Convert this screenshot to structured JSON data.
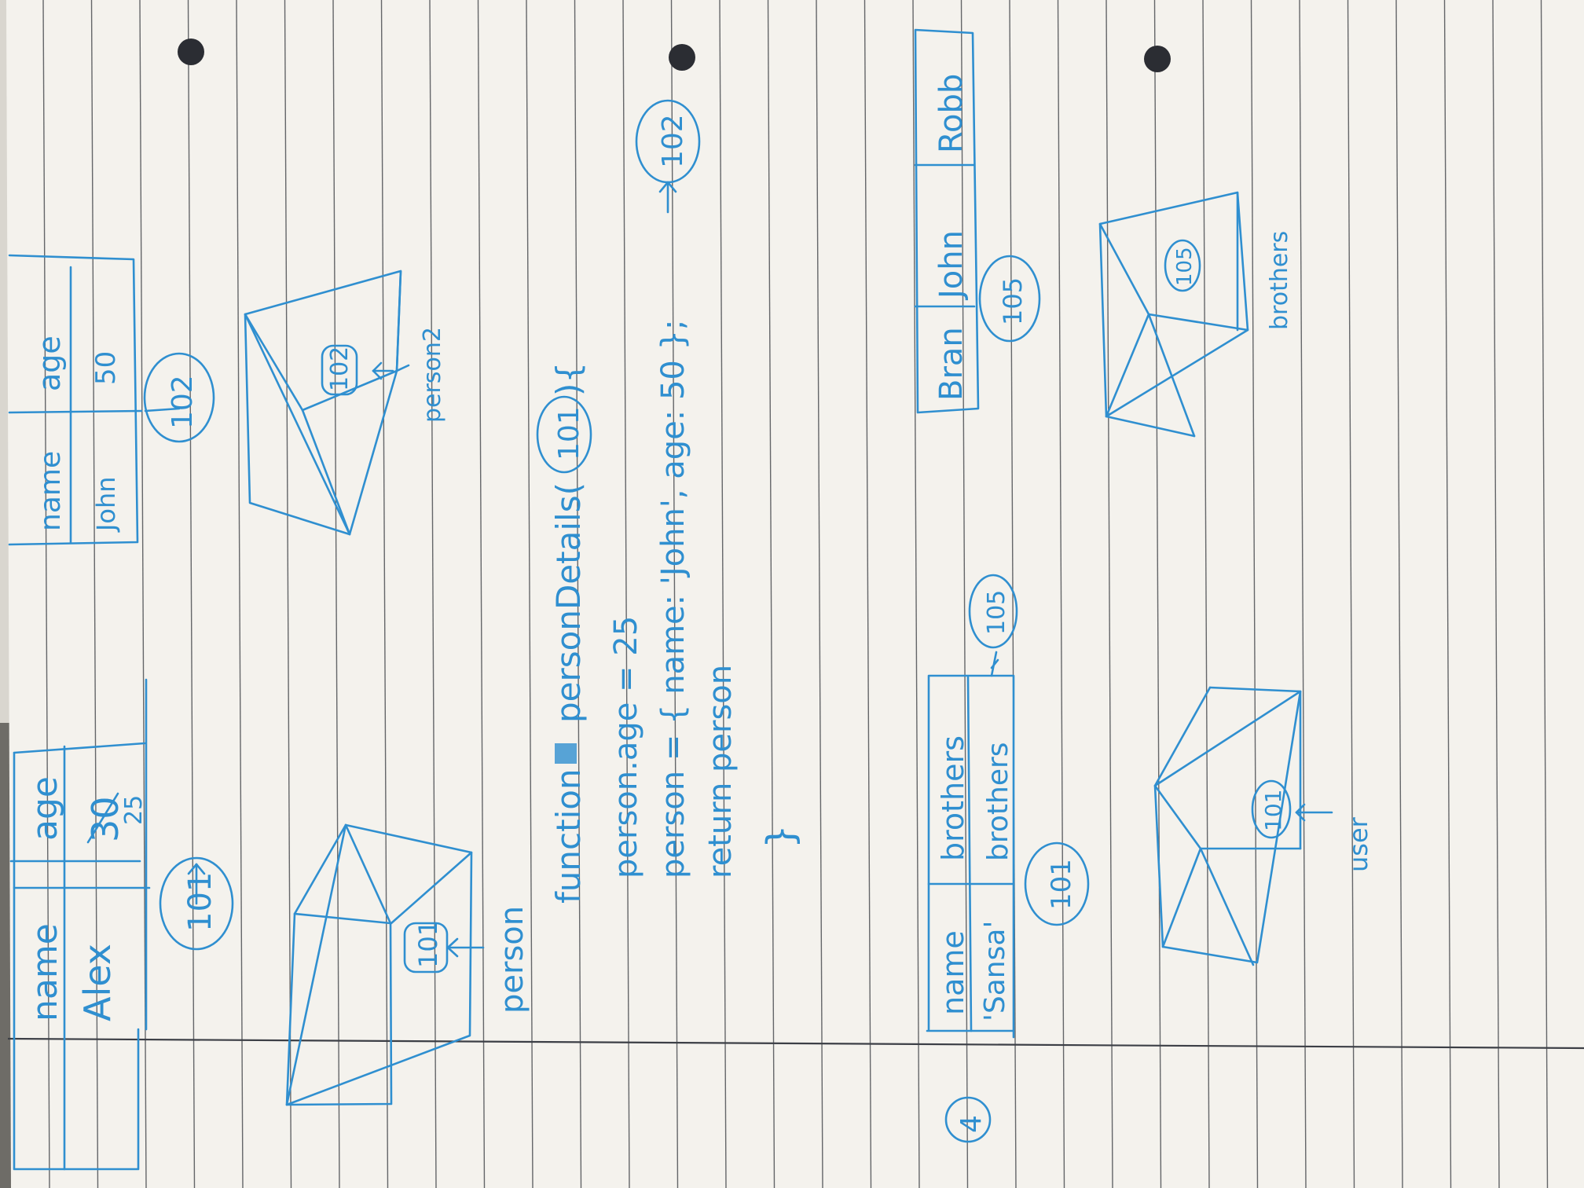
{
  "colors": {
    "ink": "#2f8fd0",
    "paper": "#f4f2ed",
    "rule": "#35383d",
    "margin": "#3c3f46",
    "hole": "#2b2d33"
  },
  "diagram_1": {
    "table": {
      "headers": [
        "name",
        "age"
      ],
      "values": [
        "Alex",
        "30"
      ],
      "age_correction": "25"
    },
    "address": "101",
    "box_address": "101",
    "variable": "person"
  },
  "diagram_2": {
    "table": {
      "headers": [
        "name",
        "age"
      ],
      "values": [
        "John",
        "50"
      ]
    },
    "address": "102",
    "box_address": "102",
    "variable": "person2"
  },
  "code": {
    "line1": "function",
    "line1_b": "personDetails(",
    "line1_addr": "101",
    "line1_c": "){",
    "line2": "person.age = 25",
    "line3": "person = { name: 'John', age: 50 };",
    "line3_addr": "102",
    "line4": "return person",
    "line5": "}"
  },
  "diagram_4": {
    "marker": "4",
    "table": {
      "headers": [
        "name",
        "brothers"
      ],
      "values": [
        "'Sansa'",
        "brothers"
      ]
    },
    "brothers_ref": "105",
    "address": "101",
    "box_address": "101",
    "variable": "user"
  },
  "diagram_5": {
    "array": [
      "Bran",
      "John",
      "Robb"
    ],
    "address": "105",
    "box_address": "105",
    "variable": "brothers"
  }
}
